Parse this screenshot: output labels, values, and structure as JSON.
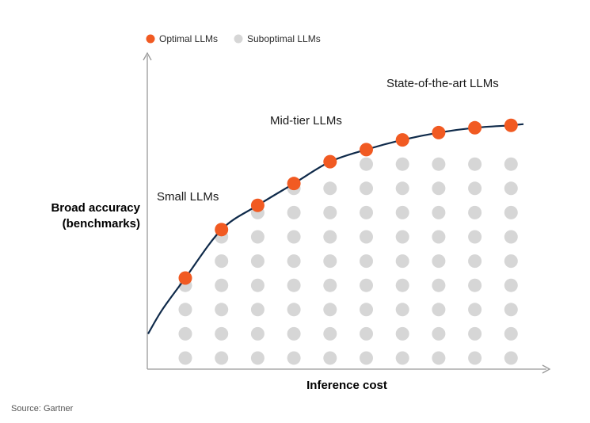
{
  "chart_data": {
    "type": "scatter",
    "xlabel": "Inference cost",
    "ylabel_lines": [
      "Broad accuracy",
      "(benchmarks)"
    ],
    "legend_placement": "top-left",
    "legend": [
      {
        "label": "Optimal LLMs",
        "color": "#f15a22"
      },
      {
        "label": "Suboptimal LLMs",
        "color": "#d6d6d6"
      }
    ],
    "curve_color": "#0f2a4a",
    "axis_color": "#999999",
    "columns": 10,
    "rows": 11,
    "series": [
      {
        "name": "Optimal LLMs",
        "color": "#f15a22",
        "points": [
          {
            "col": 1,
            "row": 4.3
          },
          {
            "col": 2,
            "row": 6.3
          },
          {
            "col": 3,
            "row": 7.3
          },
          {
            "col": 4,
            "row": 8.2
          },
          {
            "col": 5,
            "row": 9.1
          },
          {
            "col": 6,
            "row": 9.6
          },
          {
            "col": 7,
            "row": 10.0
          },
          {
            "col": 8,
            "row": 10.3
          },
          {
            "col": 9,
            "row": 10.5
          },
          {
            "col": 10,
            "row": 10.6
          }
        ]
      },
      {
        "name": "Suboptimal LLMs",
        "color": "#d6d6d6",
        "column_top_rows": [
          4,
          6,
          7,
          8,
          8,
          9,
          9,
          9,
          9,
          9
        ]
      }
    ],
    "annotations": [
      {
        "text": "Small LLMs",
        "near_col": 2
      },
      {
        "text": "Mid-tier LLMs",
        "near_col": 5
      },
      {
        "text": "State-of-the-art LLMs",
        "near_col": 9
      }
    ]
  },
  "footer": {
    "source": "Source: Gartner"
  }
}
